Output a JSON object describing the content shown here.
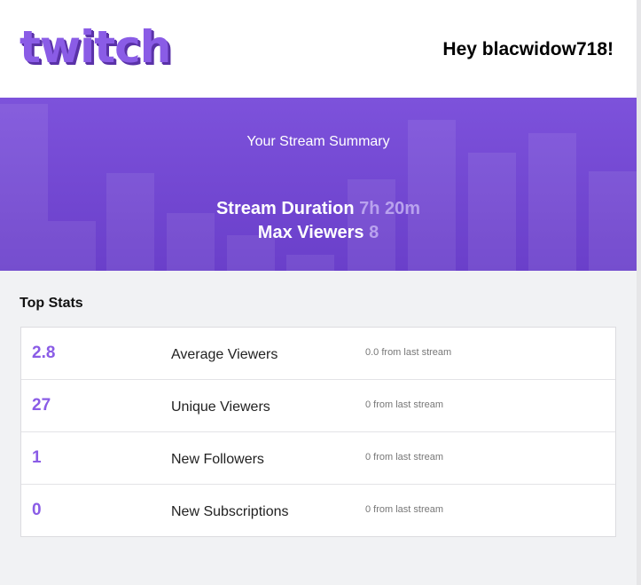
{
  "header": {
    "logo": "twitch",
    "greeting": "Hey blacwidow718!"
  },
  "banner": {
    "title": "Your Stream Summary",
    "stats": [
      {
        "label": "Stream Duration",
        "value": "7h 20m"
      },
      {
        "label": "Max Viewers",
        "value": "8"
      }
    ]
  },
  "top_stats": {
    "title": "Top Stats",
    "rows": [
      {
        "value": "2.8",
        "label": "Average Viewers",
        "change": "0.0 from last stream"
      },
      {
        "value": "27",
        "label": "Unique Viewers",
        "change": "0 from last stream"
      },
      {
        "value": "1",
        "label": "New Followers",
        "change": "0 from last stream"
      },
      {
        "value": "0",
        "label": "New Subscriptions",
        "change": "0 from last stream"
      }
    ]
  }
}
